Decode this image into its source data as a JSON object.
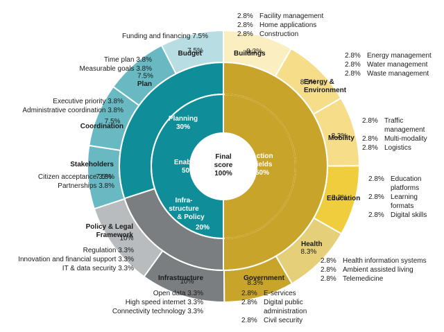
{
  "colors": {
    "action_dark": "#c9a42a",
    "action_light": "#f3d876",
    "enablers_dark": "#0f8e99",
    "enablers_light": "#69b9c3",
    "infra_dark": "#7b7e80",
    "infra_light": "#b9bcbe",
    "white": "#ffffff"
  },
  "chart_data": {
    "type": "sunburst",
    "center": {
      "line1": "Final",
      "line2": "score",
      "line3": "100%"
    },
    "middle_ring": [
      {
        "name": "Action Fields",
        "line1": "Action",
        "line2": "Fields",
        "value_label": "50%",
        "value": 50
      },
      {
        "name": "Enablers",
        "line1": "Enablers",
        "value_label": "50%",
        "value": 50
      }
    ],
    "inner_ring": [
      {
        "name": "Planning",
        "value_label": "30%",
        "value": 30
      },
      {
        "name": "Infrastructure & Policy",
        "line1": "Infra-",
        "line2": "structure",
        "line3": "& Policy",
        "value_label": "20%",
        "value": 20
      }
    ],
    "outer_ring": [
      {
        "category": "Buildings",
        "value_label": "8.3%",
        "value": 8.3,
        "shade": "light"
      },
      {
        "category": "Energy & Environment",
        "value_label": "8.3%",
        "value": 8.3,
        "shade": "light"
      },
      {
        "category": "Mobility",
        "value_label": "8.3%",
        "value": 8.3,
        "shade": "light"
      },
      {
        "category": "Education",
        "value_label": "8.3%",
        "value": 8.3,
        "shade": "mid"
      },
      {
        "category": "Health",
        "value_label": "8.3%",
        "value": 8.3,
        "shade": "light"
      },
      {
        "category": "Government",
        "value_label": "8.3%",
        "value": 8.3,
        "shade": "dark"
      },
      {
        "category": "Infrastructure",
        "value_label": "10%",
        "value": 10,
        "shade": "gray_dark"
      },
      {
        "category": "Policy & Legal Framework",
        "value_label": "10%",
        "value": 10,
        "shade": "gray_light"
      },
      {
        "category": "Stakeholders",
        "value_label": "7.5%",
        "value": 7.5,
        "shade": "teal"
      },
      {
        "category": "Coordination",
        "value_label": "7.5%",
        "value": 7.5,
        "shade": "teal"
      },
      {
        "category": "Plan",
        "value_label": "7.5%",
        "value": 7.5,
        "shade": "teal"
      },
      {
        "category": "Budget",
        "value_label": "7.5%",
        "value": 7.5,
        "shade": "teal_pale"
      }
    ],
    "categories": {
      "buildings": "Buildings",
      "energy_line1": "Energy &",
      "energy_line2": "Environment",
      "mobility": "Mobility",
      "education": "Education",
      "health": "Health",
      "government": "Government",
      "infrastructure": "Infrastructure",
      "policy_line1": "Policy & Legal",
      "policy_line2": "Framework",
      "stakeholders": "Stakeholders",
      "coordination": "Coordination",
      "plan": "Plan",
      "budget": "Budget"
    },
    "subindicators": {
      "buildings": [
        {
          "pct": "2.8%",
          "name": "Facility management"
        },
        {
          "pct": "2.8%",
          "name": "Home applications"
        },
        {
          "pct": "2.8%",
          "name": "Construction"
        }
      ],
      "energy": [
        {
          "pct": "2.8%",
          "name": "Energy management"
        },
        {
          "pct": "2.8%",
          "name": "Water management"
        },
        {
          "pct": "2.8%",
          "name": "Waste management"
        }
      ],
      "mobility": [
        {
          "pct": "2.8%",
          "name": "Traffic management"
        },
        {
          "pct": "2.8%",
          "name": "Multi-modality"
        },
        {
          "pct": "2.8%",
          "name": "Logistics"
        }
      ],
      "education": [
        {
          "pct": "2.8%",
          "name": "Education platforms"
        },
        {
          "pct": "2.8%",
          "name": "Learning formats"
        },
        {
          "pct": "2.8%",
          "name": "Digital skills"
        }
      ],
      "health": [
        {
          "pct": "2.8%",
          "name": "Health information systems"
        },
        {
          "pct": "2.8%",
          "name": "Ambient assisted living"
        },
        {
          "pct": "2.8%",
          "name": "Telemedicine"
        }
      ],
      "government": [
        {
          "pct": "2.8%",
          "name": "E-services"
        },
        {
          "pct": "2.8%",
          "name": "Digital public administration"
        },
        {
          "pct": "2.8%",
          "name": "Civil security"
        }
      ],
      "infrastructure": [
        "Open data  3.3%",
        "High speed internet  3.3%",
        "Connectivity technology  3.3%"
      ],
      "policy": [
        "Regulation  3.3%",
        "Innovation and financial support  3.3%",
        "IT & data security  3.3%"
      ],
      "stakeholders": [
        "Citizen acceptance  3.8%",
        "Partnerships  3.8%"
      ],
      "coordination": [
        "Executive priority  3.8%",
        "Administrative coordination  3.8%"
      ],
      "plan": [
        "Time plan  3.8%",
        "Measurable goals  3.8%"
      ],
      "budget": [
        "Funding and financing  7.5%"
      ]
    }
  }
}
